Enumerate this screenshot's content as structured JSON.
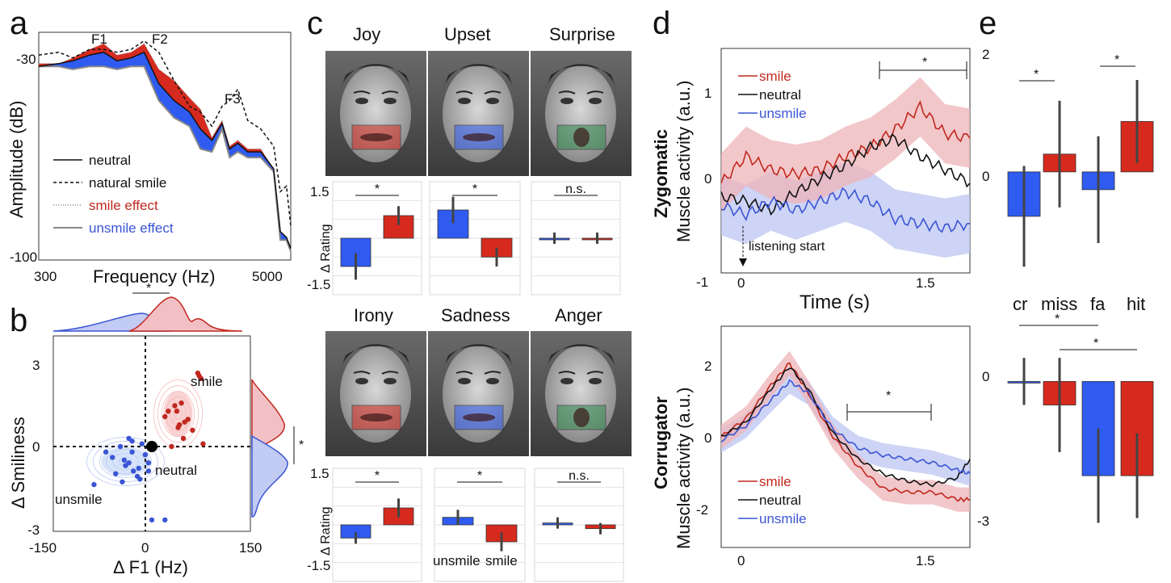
{
  "colors": {
    "smile": "#c0281e",
    "unsmile": "#3a55d4",
    "neutral": "#111111",
    "smile_fill": "#d62a1e",
    "unsmile_fill": "#2f5bf0",
    "smile_band": "#eeb4b8",
    "unsmile_band": "#bcc6f2",
    "surprise": "#2f8a4e"
  },
  "panel_labels": {
    "a": "a",
    "b": "b",
    "c": "c",
    "d": "d",
    "e": "e"
  },
  "chart_data": [
    {
      "id": "a",
      "type": "line",
      "xlabel": "Frequency (Hz)",
      "ylabel": "Amplitude (dB)",
      "xscale": "log",
      "xlim": [
        300,
        6000
      ],
      "ylim": [
        -100,
        -20
      ],
      "xticks": [
        "300",
        "5000"
      ],
      "yticks": [
        "-30",
        "-100"
      ],
      "annotations": [
        "F1",
        "F2",
        "F3"
      ],
      "legend": [
        "neutral",
        "natural smile",
        "smile effect",
        "unsmile effect"
      ],
      "series": [
        {
          "name": "neutral",
          "x": [
            300,
            380,
            450,
            550,
            650,
            760,
            900,
            1050,
            1250,
            1500,
            1800,
            2050,
            2350,
            2650,
            2900,
            3200,
            3600,
            4200,
            4900,
            5300,
            5700,
            6000
          ],
          "y": [
            -32,
            -31,
            -30,
            -28,
            -27,
            -30,
            -29,
            -27,
            -38,
            -44,
            -48,
            -54,
            -58,
            -52,
            -61,
            -59,
            -62,
            -62,
            -68,
            -90,
            -92,
            -96
          ]
        },
        {
          "name": "natural smile",
          "x": [
            300,
            380,
            450,
            550,
            650,
            760,
            900,
            1050,
            1250,
            1500,
            1800,
            2050,
            2350,
            2650,
            2900,
            3200,
            3600,
            4200,
            4900,
            5300,
            5700,
            6000
          ],
          "y": [
            -28,
            -27,
            -29,
            -26,
            -26,
            -27,
            -26,
            -23,
            -27,
            -37,
            -46,
            -48,
            -53,
            -46,
            -44,
            -40,
            -51,
            -54,
            -60,
            -76,
            -74,
            -88
          ]
        },
        {
          "name": "smile effect",
          "x": [
            300,
            380,
            450,
            550,
            650,
            760,
            900,
            1050,
            1250,
            1500,
            1800,
            2050,
            2350,
            2650,
            2900,
            3200,
            3600,
            4200,
            4900,
            5300,
            5700,
            6000
          ],
          "y": [
            -31,
            -31,
            -29,
            -26,
            -24,
            -28,
            -27,
            -24,
            -33,
            -37,
            -43,
            -47,
            -57,
            -51,
            -60,
            -58,
            -61,
            -61,
            -68,
            -90,
            -92,
            -96
          ]
        },
        {
          "name": "unsmile effect",
          "x": [
            300,
            380,
            450,
            550,
            650,
            760,
            900,
            1050,
            1250,
            1500,
            1800,
            2050,
            2350,
            2650,
            2900,
            3200,
            3600,
            4200,
            4900,
            5300,
            5700,
            6000
          ],
          "y": [
            -32,
            -32,
            -33,
            -32,
            -32,
            -33,
            -32,
            -32,
            -44,
            -50,
            -53,
            -61,
            -62,
            -54,
            -64,
            -62,
            -64,
            -64,
            -69,
            -93,
            -93,
            -97
          ]
        }
      ]
    },
    {
      "id": "b",
      "type": "scatter",
      "xlabel": "Δ F1 (Hz)",
      "ylabel": "Δ Smiliness",
      "xlim": [
        -150,
        150
      ],
      "ylim": [
        -3,
        4.3
      ],
      "xticks": [
        "-150",
        "0",
        "150"
      ],
      "yticks": [
        "3",
        "0",
        "-3"
      ],
      "labels": {
        "smile": "smile",
        "unsmile": "unsmile",
        "neutral": "neutral"
      },
      "significance": "*",
      "series": [
        {
          "name": "smile",
          "x": [
            70,
            72,
            75,
            45,
            35,
            38,
            25,
            20,
            42,
            55,
            62,
            48,
            30,
            40,
            78,
            50
          ],
          "y": [
            2.7,
            2.6,
            2.5,
            1.6,
            1.5,
            1.3,
            1.3,
            1.1,
            0.8,
            1.0,
            0.6,
            0.3,
            0.0,
            0.7,
            0.1,
            0.9
          ]
        },
        {
          "name": "unsmile",
          "x": [
            -30,
            -48,
            -15,
            -70,
            -10,
            -60,
            -35,
            -5,
            -40,
            -28,
            -55,
            -22,
            -18,
            -45,
            -88,
            -42,
            -30,
            -5,
            20,
            0,
            -20,
            -35
          ],
          "y": [
            0.2,
            0.0,
            0.1,
            -0.2,
            -0.3,
            -0.4,
            -0.6,
            -0.6,
            -0.7,
            -0.9,
            -1.0,
            -1.1,
            -1.2,
            -1.3,
            -1.4,
            -0.5,
            -0.2,
            -0.9,
            -2.7,
            -2.7,
            -0.8,
            0.3
          ]
        }
      ],
      "neutral_point": {
        "x": 0,
        "y": 0
      }
    },
    {
      "id": "c",
      "type": "bar",
      "ylabel": "Δ Rating",
      "yticks": [
        "1.5",
        "-1.5"
      ],
      "categories": [
        "unsmile",
        "smile"
      ],
      "emotions": [
        "Joy",
        "Upset",
        "Surprise",
        "Irony",
        "Sadness",
        "Anger"
      ],
      "significance": [
        "*",
        "*",
        "n.s.",
        "*",
        "*",
        "n.s."
      ],
      "values": [
        [
          -0.75,
          0.6
        ],
        [
          0.75,
          -0.5
        ],
        [
          0.0,
          0.0
        ],
        [
          -0.35,
          0.45
        ],
        [
          0.2,
          -0.45
        ],
        [
          0.05,
          -0.1
        ]
      ],
      "errors": [
        [
          0.35,
          0.25
        ],
        [
          0.35,
          0.25
        ],
        [
          0.15,
          0.15
        ],
        [
          0.15,
          0.25
        ],
        [
          0.2,
          0.25
        ],
        [
          0.15,
          0.15
        ]
      ]
    },
    {
      "id": "d",
      "type": "line",
      "xlabel": "Time (s)",
      "ylabel": "Muscle activity (a.u.)",
      "titles": [
        "Zygomatic",
        "Corrugator"
      ],
      "legend": [
        "smile",
        "neutral",
        "unsmile"
      ],
      "annotation": "listening start",
      "xlim": [
        -0.1,
        1.9
      ],
      "top": {
        "ylim": [
          -1,
          1.5
        ],
        "yticks": [
          "1",
          "0",
          "-1"
        ],
        "xticks": [
          "0",
          "1.5"
        ],
        "significance": "*",
        "sig_range": [
          1.1,
          1.9
        ],
        "series": [
          {
            "name": "smile",
            "x": [
              -0.1,
              0.1,
              0.3,
              0.5,
              0.7,
              0.9,
              1.1,
              1.3,
              1.5,
              1.7,
              1.9
            ],
            "y": [
              0.0,
              0.3,
              0.15,
              0.1,
              0.15,
              0.3,
              0.4,
              0.6,
              0.85,
              0.55,
              0.5
            ]
          },
          {
            "name": "neutral",
            "x": [
              -0.1,
              0.1,
              0.3,
              0.5,
              0.7,
              0.9,
              1.1,
              1.3,
              1.5,
              1.7,
              1.9
            ],
            "y": [
              -0.15,
              -0.2,
              -0.3,
              -0.1,
              0.05,
              0.2,
              0.4,
              0.5,
              0.3,
              0.15,
              0.0
            ]
          },
          {
            "name": "unsmile",
            "x": [
              -0.1,
              0.1,
              0.3,
              0.5,
              0.7,
              0.9,
              1.1,
              1.3,
              1.5,
              1.7,
              1.9
            ],
            "y": [
              -0.25,
              -0.35,
              -0.2,
              -0.3,
              -0.2,
              -0.1,
              -0.2,
              -0.4,
              -0.45,
              -0.5,
              -0.45
            ]
          }
        ]
      },
      "bottom": {
        "ylim": [
          -3,
          3
        ],
        "yticks": [
          "2",
          "0",
          "-2"
        ],
        "xticks": [
          "0",
          "1.5"
        ],
        "significance": "*",
        "sig_range": [
          0.85,
          1.55
        ],
        "series": [
          {
            "name": "smile",
            "x": [
              -0.1,
              0.1,
              0.3,
              0.45,
              0.6,
              0.8,
              1.0,
              1.2,
              1.4,
              1.6,
              1.8,
              1.9
            ],
            "y": [
              0.0,
              0.5,
              1.4,
              2.0,
              1.2,
              0.0,
              -0.8,
              -1.4,
              -1.5,
              -1.5,
              -1.7,
              -1.7
            ]
          },
          {
            "name": "neutral",
            "x": [
              -0.1,
              0.1,
              0.3,
              0.45,
              0.6,
              0.8,
              1.0,
              1.2,
              1.4,
              1.6,
              1.8,
              1.9
            ],
            "y": [
              0.0,
              0.4,
              1.3,
              1.9,
              1.3,
              0.1,
              -0.6,
              -1.0,
              -1.2,
              -1.3,
              -1.1,
              -0.6
            ]
          },
          {
            "name": "unsmile",
            "x": [
              -0.1,
              0.1,
              0.3,
              0.45,
              0.6,
              0.8,
              1.0,
              1.2,
              1.4,
              1.6,
              1.8,
              1.9
            ],
            "y": [
              -0.1,
              0.3,
              1.0,
              1.5,
              1.2,
              0.2,
              -0.3,
              -0.5,
              -0.6,
              -0.7,
              -0.9,
              -1.0
            ]
          }
        ]
      }
    },
    {
      "id": "e",
      "type": "bar",
      "categories": [
        "cr",
        "miss",
        "fa",
        "hit"
      ],
      "top": {
        "ylim": [
          -1.5,
          2
        ],
        "yticks": [
          "2",
          "0"
        ],
        "values": [
          -0.75,
          0.3,
          -0.3,
          0.85
        ],
        "errors": [
          0.85,
          0.9,
          0.9,
          0.7
        ],
        "colors": [
          "unsmile",
          "smile",
          "unsmile",
          "smile"
        ],
        "significance": [
          "*",
          "*"
        ]
      },
      "bottom": {
        "ylim": [
          -3.3,
          1
        ],
        "yticks": [
          "0",
          "-3"
        ],
        "values": [
          0.0,
          -0.5,
          -2.0,
          -2.0
        ],
        "errors": [
          0.5,
          1.0,
          1.0,
          0.9
        ],
        "colors": [
          "unsmile",
          "smile",
          "unsmile",
          "smile"
        ],
        "significance": [
          "*",
          "*"
        ]
      }
    }
  ]
}
